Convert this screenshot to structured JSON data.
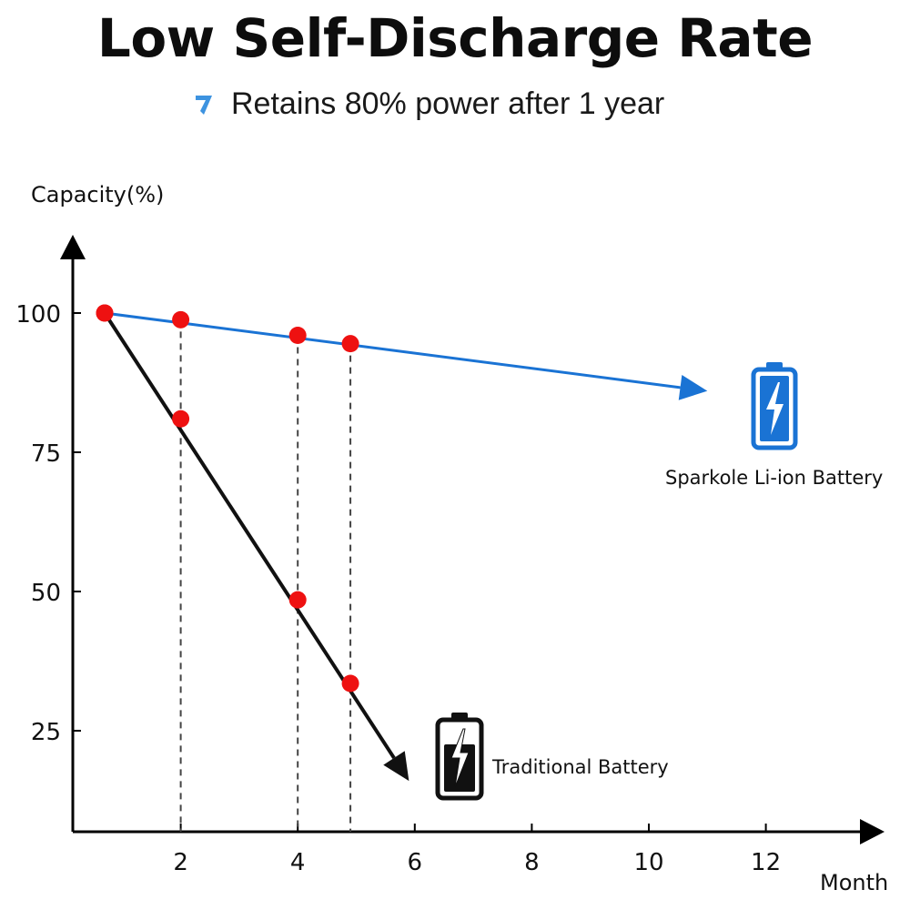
{
  "title": "Low Self-Discharge Rate",
  "subtitle": "Retains 80% power after 1 year",
  "colors": {
    "accent": "#1a73d4",
    "marker": "#ee1111",
    "axis": "#000000",
    "trad": "#111111"
  },
  "chart_data": {
    "type": "line",
    "ylabel": "Capacity(%)",
    "xlabel": "Month",
    "xlim": [
      0,
      14
    ],
    "ylim": [
      10,
      115
    ],
    "x_ticks": [
      "2",
      "4",
      "6",
      "8",
      "10",
      "12"
    ],
    "x_tick_values": [
      2,
      4,
      6,
      8,
      10,
      12
    ],
    "y_ticks": [
      "100",
      "75",
      "50",
      "25"
    ],
    "y_tick_values": [
      100,
      75,
      50,
      25
    ],
    "grid": false,
    "dropline_x": [
      2,
      4,
      4.9
    ],
    "series": [
      {
        "name": "Sparkole Li-ion Battery",
        "color": "#1a73d4",
        "icon": "battery-icon",
        "points": [
          [
            0.7,
            100
          ],
          [
            2,
            98.8
          ],
          [
            4,
            96
          ],
          [
            4.9,
            94.5
          ]
        ],
        "arrow_to": [
          11,
          86
        ]
      },
      {
        "name": "Traditional Battery",
        "color": "#111111",
        "icon": "battery-icon",
        "points": [
          [
            0.7,
            100
          ],
          [
            2,
            81
          ],
          [
            4,
            48.5
          ],
          [
            4.9,
            33.5
          ]
        ],
        "arrow_to": [
          5.9,
          16
        ]
      }
    ]
  }
}
